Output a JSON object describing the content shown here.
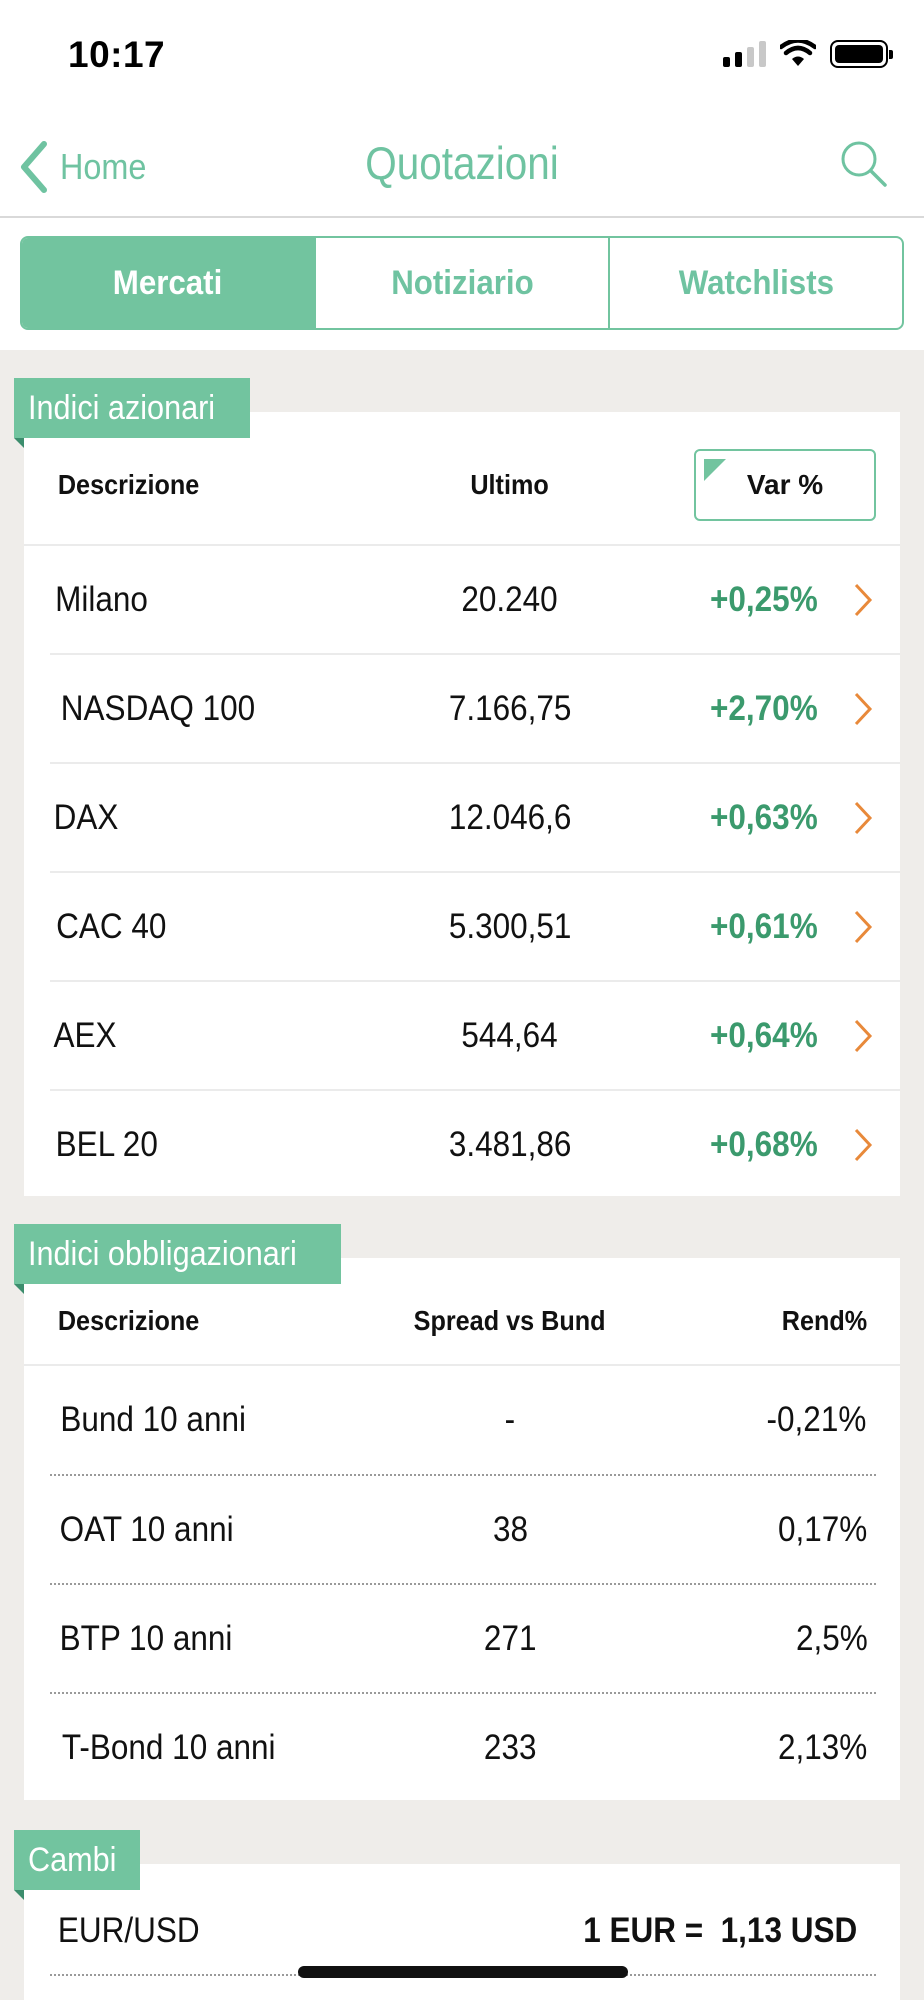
{
  "status_bar": {
    "time": "10:17"
  },
  "nav": {
    "back_label": "Home",
    "title": "Quotazioni"
  },
  "tabs": [
    {
      "label": "Mercati",
      "active": true
    },
    {
      "label": "Notiziario",
      "active": false
    },
    {
      "label": "Watchlists",
      "active": false
    }
  ],
  "equity": {
    "title": "Indici azionari",
    "headers": {
      "desc": "Descrizione",
      "last": "Ultimo",
      "change": "Var %"
    },
    "rows": [
      {
        "name": "Milano",
        "last": "20.240",
        "change": "+0,25%"
      },
      {
        "name": "NASDAQ 100",
        "last": "7.166,75",
        "change": "+2,70%"
      },
      {
        "name": "DAX",
        "last": "12.046,6",
        "change": "+0,63%"
      },
      {
        "name": "CAC 40",
        "last": "5.300,51",
        "change": "+0,61%"
      },
      {
        "name": "AEX",
        "last": "544,64",
        "change": "+0,64%"
      },
      {
        "name": "BEL 20",
        "last": "3.481,86",
        "change": "+0,68%"
      }
    ]
  },
  "bonds": {
    "title": "Indici obbligazionari",
    "headers": {
      "desc": "Descrizione",
      "spread": "Spread vs Bund",
      "yield": "Rend%"
    },
    "rows": [
      {
        "name": "Bund 10 anni",
        "spread": "-",
        "yield": "-0,21%"
      },
      {
        "name": "OAT 10 anni",
        "spread": "38",
        "yield": "0,17%"
      },
      {
        "name": "BTP 10 anni",
        "spread": "271",
        "yield": "2,5%"
      },
      {
        "name": "T-Bond 10 anni",
        "spread": "233",
        "yield": "2,13%"
      }
    ]
  },
  "fx": {
    "title": "Cambi",
    "rows": [
      {
        "pair": "EUR/USD",
        "rate": "1 EUR =  1,13 USD"
      }
    ]
  },
  "colors": {
    "accent": "#72c49f",
    "positive": "#3b9a6d",
    "chevron": "#e8893a",
    "background": "#efedea"
  }
}
